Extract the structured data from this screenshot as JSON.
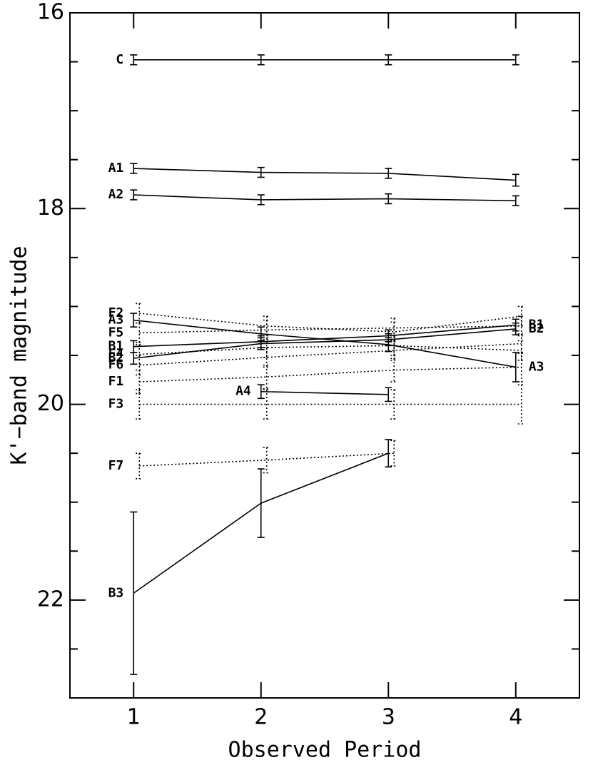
{
  "chart_data": {
    "type": "line",
    "xlabel": "Observed Period",
    "ylabel": "K'−band magnitude",
    "x": [
      1,
      2,
      3,
      4
    ],
    "xlim": [
      0.5,
      4.5
    ],
    "xticks": [
      1,
      2,
      3,
      4
    ],
    "ylim": [
      16,
      23
    ],
    "yticks": [
      16,
      18,
      20,
      22
    ],
    "yminorticks": [
      16.5,
      17,
      17.5,
      18.5,
      19,
      19.5,
      20.5,
      21,
      21.5,
      22.5
    ],
    "y_inverted": true,
    "color": "#000000",
    "series": [
      {
        "name": "C",
        "style": "solid",
        "values": [
          16.48,
          16.48,
          16.48,
          16.48
        ],
        "errors": [
          0.05,
          0.05,
          0.05,
          0.05
        ]
      },
      {
        "name": "A1",
        "style": "solid",
        "values": [
          17.59,
          17.63,
          17.64,
          17.71
        ],
        "errors": [
          0.05,
          0.05,
          0.05,
          0.06
        ]
      },
      {
        "name": "A2",
        "style": "solid",
        "values": [
          17.86,
          17.91,
          17.9,
          17.92
        ],
        "errors": [
          0.05,
          0.05,
          0.05,
          0.05
        ]
      },
      {
        "name": "A3",
        "end_label": "A3",
        "style": "solid",
        "values": [
          19.14,
          19.28,
          19.39,
          19.62
        ],
        "errors": [
          0.07,
          0.07,
          0.07,
          0.15
        ]
      },
      {
        "name": "B1",
        "end_label": "B1",
        "style": "solid",
        "values": [
          19.41,
          19.36,
          19.3,
          19.19
        ],
        "errors": [
          0.06,
          0.06,
          0.06,
          0.06
        ]
      },
      {
        "name": "B2",
        "end_label": "B2",
        "style": "solid",
        "values": [
          19.53,
          19.38,
          19.34,
          19.23
        ],
        "errors": [
          0.06,
          0.06,
          0.06,
          0.06
        ]
      },
      {
        "name": "A4",
        "style": "solid",
        "values": [
          null,
          19.87,
          19.9,
          null
        ],
        "errors": [
          null,
          0.07,
          0.07,
          null
        ]
      },
      {
        "name": "B3",
        "style": "solid",
        "values": [
          21.93,
          21.01,
          20.5,
          null
        ],
        "errors": [
          0.83,
          0.35,
          0.14,
          null
        ]
      },
      {
        "name": "F2",
        "style": "dotted",
        "values": [
          19.07,
          19.2,
          19.26,
          19.1
        ],
        "errors": [
          0.1,
          0.1,
          0.1,
          0.1
        ]
      },
      {
        "name": "F5",
        "style": "dotted",
        "values": [
          19.27,
          19.24,
          19.22,
          19.2
        ],
        "errors": [
          0.1,
          0.1,
          0.1,
          0.1
        ]
      },
      {
        "name": "F4",
        "style": "dotted",
        "values": [
          19.49,
          19.42,
          19.4,
          19.45
        ],
        "errors": [
          0.1,
          0.1,
          0.1,
          0.1
        ]
      },
      {
        "name": "F6",
        "style": "dotted",
        "values": [
          19.6,
          19.52,
          19.45,
          19.38
        ],
        "errors": [
          0.1,
          0.1,
          0.1,
          0.1
        ]
      },
      {
        "name": "F1",
        "style": "dotted",
        "values": [
          19.77,
          19.72,
          19.65,
          19.62
        ],
        "errors": [
          0.12,
          0.12,
          0.12,
          0.15
        ]
      },
      {
        "name": "F3",
        "style": "dotted",
        "values": [
          20.0,
          20.0,
          20.0,
          20.0
        ],
        "errors": [
          0.15,
          0.15,
          0.15,
          0.2
        ]
      },
      {
        "name": "F7",
        "style": "dotted",
        "values": [
          20.63,
          20.57,
          20.5,
          null
        ],
        "errors": [
          0.13,
          0.13,
          0.13,
          null
        ]
      }
    ]
  }
}
